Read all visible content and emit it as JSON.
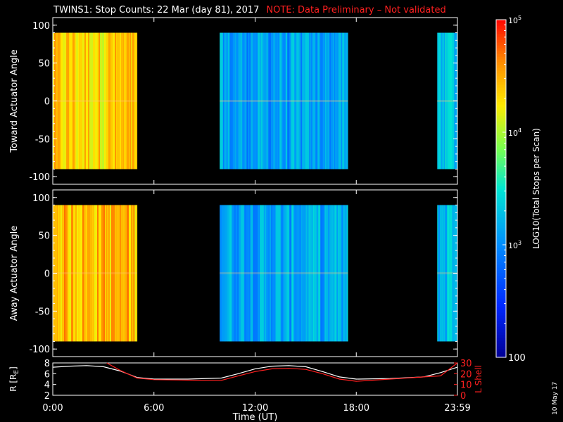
{
  "title": "TWINS1: Stop Counts: 22 Mar (day  81), 2017",
  "note": "NOTE: Data Preliminary – Not validated",
  "stamp": "10 May 17",
  "colors": {
    "background": "#000000",
    "axes": "#ffffff",
    "note": "#ff2020",
    "r_line": "#ffffff",
    "lshell_line": "#ff2020"
  },
  "chart_data": [
    {
      "type": "heatmap",
      "name": "toward",
      "ylabel": "Toward Actuator Angle",
      "ylim": [
        -110,
        110
      ],
      "yticks": [
        100,
        50,
        0,
        -50,
        -100
      ],
      "xlim": [
        0,
        24
      ],
      "colorscale": "log10",
      "colorbar_range": [
        100,
        100000
      ],
      "colorbar_ticks": [
        "10^5",
        "10^4",
        "10^3",
        "100"
      ],
      "colorbar_label": "LOG10(Total Stops per Scan)",
      "data_blocks": [
        {
          "t_start": 0.0,
          "t_end": 5.0,
          "angle_range": [
            -90,
            90
          ],
          "level": 4.35
        },
        {
          "t_start": 9.9,
          "t_end": 17.5,
          "angle_range": [
            -90,
            90
          ],
          "level": 3.1
        },
        {
          "t_start": 22.8,
          "t_end": 24.0,
          "angle_range": [
            -90,
            90
          ],
          "level": 3.3
        }
      ]
    },
    {
      "type": "heatmap",
      "name": "away",
      "ylabel": "Away Actuator Angle",
      "ylim": [
        -110,
        110
      ],
      "yticks": [
        100,
        50,
        0,
        -50,
        -100
      ],
      "xlim": [
        0,
        24
      ],
      "colorscale": "log10",
      "data_blocks": [
        {
          "t_start": 0.0,
          "t_end": 5.0,
          "angle_range": [
            -90,
            90
          ],
          "level": 4.45
        },
        {
          "t_start": 9.9,
          "t_end": 17.5,
          "angle_range": [
            -90,
            90
          ],
          "level": 3.15
        },
        {
          "t_start": 22.8,
          "t_end": 24.0,
          "angle_range": [
            -90,
            90
          ],
          "level": 3.3
        }
      ]
    },
    {
      "type": "line",
      "name": "orbit",
      "ylabel_left": "R [R",
      "ylabel_left_sub": "E",
      "ylabel_left_end": "]",
      "ylabel_right": "L Shell",
      "xlabel": "Time (UT)",
      "xticks": [
        "0:00",
        "6:00",
        "12:00",
        "18:00",
        "23:59"
      ],
      "xtick_hours": [
        0,
        6,
        12,
        18,
        24
      ],
      "xlim": [
        0,
        24
      ],
      "ylim_left": [
        2,
        8
      ],
      "yticks_left": [
        8,
        6,
        4,
        2
      ],
      "ylim_right": [
        0,
        30
      ],
      "yticks_right": [
        30,
        20,
        10,
        0
      ],
      "series": [
        {
          "name": "R",
          "axis": "left",
          "x": [
            0,
            1,
            2,
            3,
            4,
            5,
            6,
            8,
            10,
            11,
            12,
            13,
            14,
            15,
            16,
            17,
            18,
            20,
            22,
            23,
            24
          ],
          "y": [
            7.2,
            7.4,
            7.5,
            7.3,
            6.5,
            5.3,
            5.0,
            5.0,
            5.2,
            6.0,
            6.9,
            7.4,
            7.5,
            7.3,
            6.4,
            5.4,
            5.0,
            5.1,
            5.4,
            6.2,
            7.2
          ]
        },
        {
          "name": "L Shell",
          "axis": "right",
          "x": [
            3.2,
            4,
            5,
            6,
            8,
            10,
            11,
            12,
            13,
            14,
            15,
            16,
            17,
            18,
            20,
            22,
            23,
            24
          ],
          "y": [
            30,
            23,
            16,
            14.5,
            14,
            13.8,
            18,
            22,
            24.5,
            25,
            24,
            20,
            15,
            13,
            15,
            17,
            18,
            30
          ]
        }
      ]
    }
  ]
}
